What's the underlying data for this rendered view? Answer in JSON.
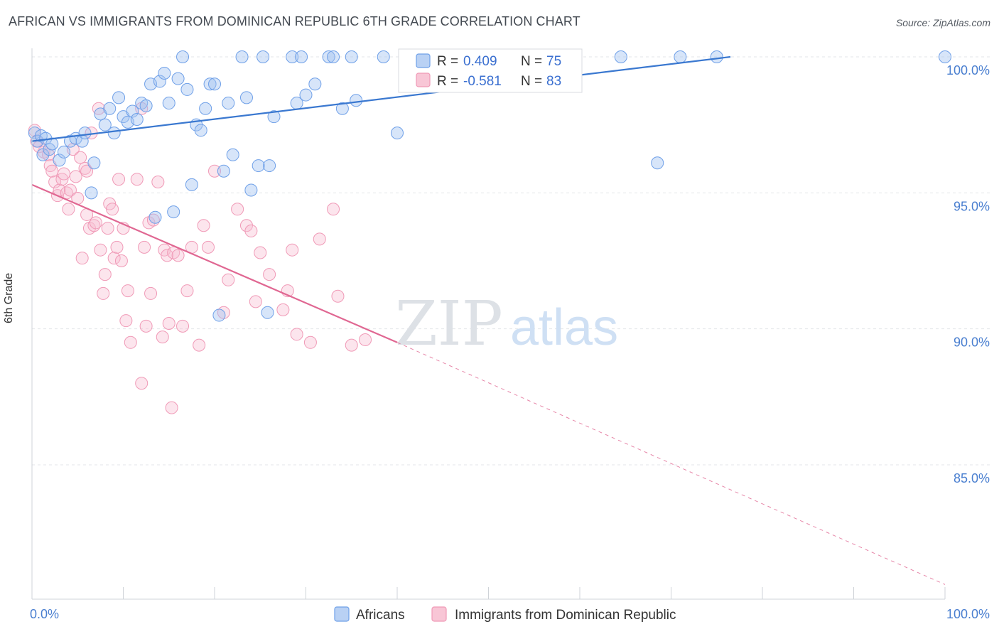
{
  "title": "AFRICAN VS IMMIGRANTS FROM DOMINICAN REPUBLIC 6TH GRADE CORRELATION CHART",
  "source": "Source: ZipAtlas.com",
  "watermark": {
    "zip": "ZIP",
    "atlas": "atlas"
  },
  "colors": {
    "blue": "#6fa0e8",
    "blue_line": "#3a78d0",
    "pink": "#f09ab7",
    "pink_line": "#e06792",
    "axis_text": "#4a7fd0"
  },
  "legend_box": {
    "rows": [
      {
        "r_label": "R =",
        "r_value": "0.409",
        "n_label": "N =",
        "n_value": "75"
      },
      {
        "r_label": "R =",
        "r_value": "-0.581",
        "n_label": "N =",
        "n_value": "83"
      }
    ]
  },
  "bottom_legend": [
    "Africans",
    "Immigrants from Dominican Republic"
  ],
  "chart_data": {
    "type": "scatter",
    "xlabel": "",
    "ylabel": "6th Grade",
    "xlim": [
      0,
      100
    ],
    "ylim": [
      80.5,
      100.5
    ],
    "x_tick_labels": [
      "0.0%",
      "100.0%"
    ],
    "y_tick_labels": [
      "85.0%",
      "90.0%",
      "95.0%",
      "100.0%"
    ],
    "y_ticks": [
      85,
      90,
      95,
      100
    ],
    "grid": true,
    "series": [
      {
        "name": "Africans",
        "trend": {
          "x": [
            0,
            76.5
          ],
          "y": [
            96.9,
            100.0
          ]
        },
        "points": [
          [
            0.3,
            97.2
          ],
          [
            0.6,
            96.9
          ],
          [
            1.0,
            97.1
          ],
          [
            1.2,
            96.4
          ],
          [
            1.5,
            97.0
          ],
          [
            1.9,
            96.6
          ],
          [
            2.2,
            96.8
          ],
          [
            3.0,
            96.2
          ],
          [
            3.5,
            96.5
          ],
          [
            4.2,
            96.9
          ],
          [
            4.8,
            97.0
          ],
          [
            5.5,
            96.9
          ],
          [
            5.8,
            97.2
          ],
          [
            6.5,
            95.0
          ],
          [
            6.8,
            96.1
          ],
          [
            7.5,
            97.9
          ],
          [
            8.0,
            97.5
          ],
          [
            8.5,
            98.1
          ],
          [
            9.0,
            97.2
          ],
          [
            9.5,
            98.5
          ],
          [
            10.0,
            97.8
          ],
          [
            10.5,
            97.6
          ],
          [
            11.0,
            98.0
          ],
          [
            11.5,
            97.7
          ],
          [
            12.0,
            98.3
          ],
          [
            12.5,
            98.2
          ],
          [
            13.0,
            99.0
          ],
          [
            13.5,
            94.1
          ],
          [
            14.0,
            99.1
          ],
          [
            14.5,
            99.4
          ],
          [
            15.0,
            98.3
          ],
          [
            15.5,
            94.3
          ],
          [
            16.0,
            99.2
          ],
          [
            16.5,
            100.0
          ],
          [
            17.0,
            98.8
          ],
          [
            17.5,
            95.3
          ],
          [
            18.0,
            97.5
          ],
          [
            18.5,
            97.3
          ],
          [
            19.0,
            98.1
          ],
          [
            19.5,
            99.0
          ],
          [
            20.0,
            99.0
          ],
          [
            20.5,
            90.5
          ],
          [
            21.0,
            95.8
          ],
          [
            21.5,
            98.3
          ],
          [
            22.0,
            96.4
          ],
          [
            23.0,
            100.0
          ],
          [
            23.5,
            98.5
          ],
          [
            24.0,
            95.1
          ],
          [
            24.8,
            96.0
          ],
          [
            25.3,
            100.0
          ],
          [
            25.8,
            90.6
          ],
          [
            26.0,
            96.0
          ],
          [
            26.5,
            97.8
          ],
          [
            28.5,
            100.0
          ],
          [
            29.0,
            98.3
          ],
          [
            29.5,
            100.0
          ],
          [
            30.0,
            98.6
          ],
          [
            31.0,
            99.0
          ],
          [
            32.5,
            100.0
          ],
          [
            33.0,
            100.0
          ],
          [
            34.0,
            98.1
          ],
          [
            35.0,
            100.0
          ],
          [
            35.5,
            98.4
          ],
          [
            38.5,
            100.0
          ],
          [
            40.0,
            97.2
          ],
          [
            42.0,
            99.2
          ],
          [
            45.0,
            100.0
          ],
          [
            46.0,
            99.9
          ],
          [
            49.0,
            100.0
          ],
          [
            54.0,
            100.0
          ],
          [
            64.5,
            100.0
          ],
          [
            68.5,
            96.1
          ],
          [
            71.0,
            100.0
          ],
          [
            75.0,
            100.0
          ],
          [
            100.0,
            100.0
          ]
        ]
      },
      {
        "name": "Immigrants from Dominican Republic",
        "trend": {
          "x": [
            0,
            40
          ],
          "y": [
            95.3,
            89.5
          ]
        },
        "trend_extension": {
          "x": [
            40,
            100
          ],
          "y": [
            89.5,
            80.6
          ]
        },
        "points": [
          [
            0.3,
            97.3
          ],
          [
            0.5,
            96.9
          ],
          [
            0.8,
            96.7
          ],
          [
            1.3,
            96.5
          ],
          [
            1.8,
            96.4
          ],
          [
            2.0,
            96.0
          ],
          [
            2.2,
            95.8
          ],
          [
            2.5,
            95.4
          ],
          [
            2.8,
            94.9
          ],
          [
            3.0,
            95.1
          ],
          [
            3.3,
            95.5
          ],
          [
            3.5,
            95.7
          ],
          [
            3.8,
            95.0
          ],
          [
            4.0,
            94.4
          ],
          [
            4.2,
            95.1
          ],
          [
            4.5,
            96.6
          ],
          [
            4.8,
            95.6
          ],
          [
            5.0,
            94.8
          ],
          [
            5.3,
            96.3
          ],
          [
            5.5,
            92.6
          ],
          [
            5.8,
            95.9
          ],
          [
            6.0,
            94.2
          ],
          [
            6.3,
            93.7
          ],
          [
            6.5,
            97.2
          ],
          [
            6.8,
            93.8
          ],
          [
            7.0,
            93.9
          ],
          [
            7.3,
            98.1
          ],
          [
            7.5,
            92.9
          ],
          [
            7.8,
            91.3
          ],
          [
            8.0,
            92.0
          ],
          [
            8.3,
            93.7
          ],
          [
            8.5,
            94.6
          ],
          [
            8.8,
            94.4
          ],
          [
            9.0,
            92.6
          ],
          [
            9.3,
            93.0
          ],
          [
            9.5,
            95.5
          ],
          [
            9.8,
            92.5
          ],
          [
            10.0,
            93.7
          ],
          [
            10.3,
            90.3
          ],
          [
            10.5,
            91.4
          ],
          [
            10.8,
            89.5
          ],
          [
            11.5,
            95.5
          ],
          [
            12.0,
            98.1
          ],
          [
            12.3,
            93.0
          ],
          [
            12.5,
            90.1
          ],
          [
            12.8,
            93.9
          ],
          [
            13.0,
            91.3
          ],
          [
            13.3,
            94.0
          ],
          [
            13.8,
            95.4
          ],
          [
            14.3,
            89.7
          ],
          [
            14.5,
            92.9
          ],
          [
            14.8,
            92.7
          ],
          [
            15.0,
            90.2
          ],
          [
            15.3,
            87.1
          ],
          [
            15.5,
            92.8
          ],
          [
            16.0,
            92.7
          ],
          [
            16.5,
            90.1
          ],
          [
            17.0,
            91.4
          ],
          [
            17.5,
            93.0
          ],
          [
            18.3,
            89.4
          ],
          [
            18.8,
            93.8
          ],
          [
            19.3,
            93.0
          ],
          [
            20.0,
            95.8
          ],
          [
            21.0,
            90.6
          ],
          [
            21.5,
            91.8
          ],
          [
            22.5,
            94.4
          ],
          [
            23.5,
            93.8
          ],
          [
            24.0,
            93.6
          ],
          [
            24.5,
            91.0
          ],
          [
            25.0,
            92.8
          ],
          [
            26.0,
            92.0
          ],
          [
            27.5,
            90.7
          ],
          [
            28.0,
            91.4
          ],
          [
            28.5,
            92.9
          ],
          [
            29.0,
            89.8
          ],
          [
            30.5,
            89.5
          ],
          [
            31.5,
            93.3
          ],
          [
            33.0,
            94.4
          ],
          [
            33.5,
            91.2
          ],
          [
            35.0,
            89.4
          ],
          [
            36.5,
            89.6
          ],
          [
            12.0,
            88.0
          ],
          [
            6.0,
            95.8
          ]
        ]
      }
    ]
  }
}
